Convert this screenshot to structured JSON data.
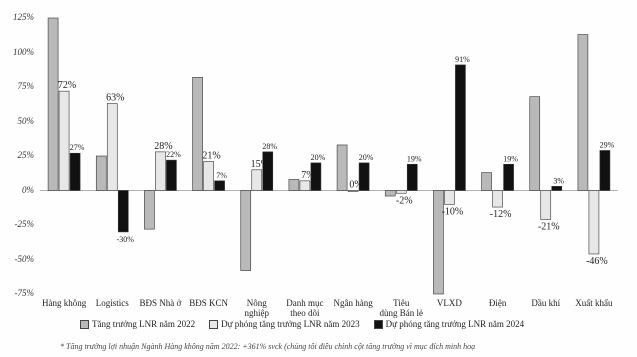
{
  "chart_data": {
    "type": "bar",
    "categories": [
      "Hàng không",
      "Logistics",
      "BĐS Nhà ở",
      "BĐS KCN",
      "Nông\nnghiệp",
      "Danh mục\ntheo dõi",
      "Ngân hàng",
      "Tiêu\ndùng Bán lẻ",
      "VLXD",
      "Điện",
      "Dầu khí",
      "Xuất khẩu"
    ],
    "series": [
      {
        "name": "Tăng trưởng LNR năm 2022",
        "values": [
          125,
          25,
          -28,
          82,
          -58,
          8,
          33,
          -4,
          -75,
          13,
          68,
          113
        ],
        "color": "#b9b9b9"
      },
      {
        "name": "Dự phóng tăng trưởng LNR năm 2023",
        "values": [
          72,
          63,
          28,
          21,
          15,
          7,
          0,
          -2,
          -10,
          -12,
          -21,
          -46
        ],
        "color": "#e7e7e7"
      },
      {
        "name": "Dự phóng tăng trưởng LNR năm 2024",
        "values": [
          27,
          -30,
          22,
          7,
          28,
          20,
          20,
          19,
          91,
          19,
          3,
          29
        ],
        "color": "#111111"
      }
    ],
    "data_labels": [
      [
        "",
        "72%",
        "27%"
      ],
      [
        "",
        "63%",
        "-30%"
      ],
      [
        "",
        "28%",
        "22%"
      ],
      [
        "",
        "21%",
        "7%"
      ],
      [
        "",
        "15%",
        "28%"
      ],
      [
        "",
        "7%",
        "20%"
      ],
      [
        "",
        "0%",
        "20%"
      ],
      [
        "",
        "-2%",
        "19%"
      ],
      [
        "",
        "-10%",
        "91%"
      ],
      [
        "",
        "-12%",
        "19%"
      ],
      [
        "",
        "-21%",
        "3%"
      ],
      [
        "",
        "-46%",
        "29%"
      ]
    ],
    "yticks": [
      "125%",
      "100%",
      "75%",
      "50%",
      "25%",
      "0%",
      "-25%",
      "-50%",
      "-75%"
    ],
    "ylim": [
      -75,
      125
    ],
    "legend_position": "bottom",
    "title": "",
    "xlabel": "",
    "ylabel": ""
  },
  "footnote": "* Tăng trưởng lợi nhuận Ngành Hàng không năm 2022: +361% svck (chúng tôi điều chỉnh cột tăng trưởng vì mục đích minh hoạ"
}
